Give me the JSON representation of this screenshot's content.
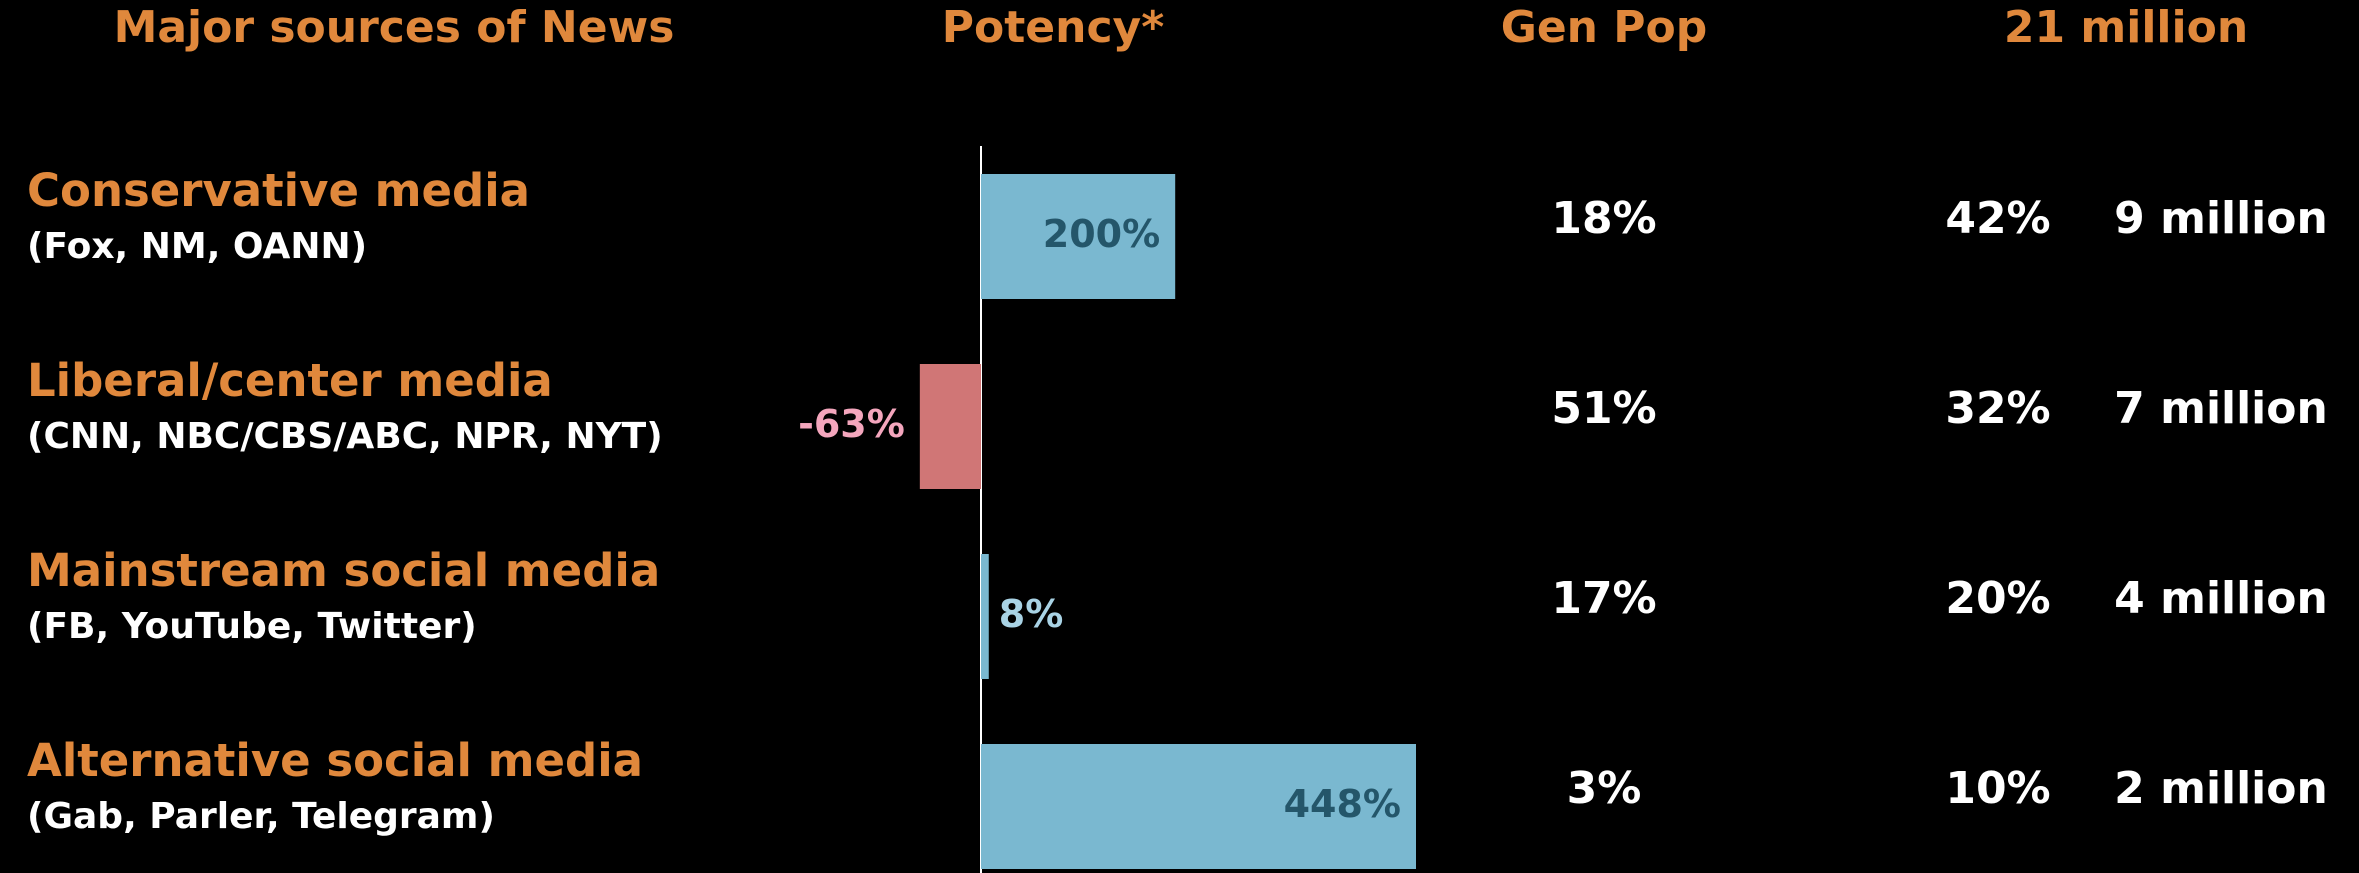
{
  "chart_data": {
    "type": "bar",
    "orientation": "horizontal",
    "title": "Potency*",
    "categories": [
      "Conservative media",
      "Liberal/center media",
      "Mainstream social media",
      "Alternative social media"
    ],
    "category_details": [
      "(Fox, NM, OANN)",
      "(CNN, NBC/CBS/ABC, NPR, NYT)",
      "(FB, YouTube, Twitter)",
      "(Gab, Parler, Telegram)"
    ],
    "values": [
      200,
      -63,
      8,
      448
    ],
    "value_labels": [
      "200%",
      "-63%",
      "8%",
      "448%"
    ],
    "colors": {
      "positive": "#7ab8d0",
      "negative": "#d07676"
    }
  },
  "table": {
    "headers": {
      "sources": "Major sources of News",
      "gen_pop": "Gen Pop",
      "group": "21 million"
    },
    "rows": [
      {
        "gen_pop": "18%",
        "group_share": "42%",
        "group_size": "9 million"
      },
      {
        "gen_pop": "51%",
        "group_share": "32%",
        "group_size": "7 million"
      },
      {
        "gen_pop": "17%",
        "group_share": "20%",
        "group_size": "4 million"
      },
      {
        "gen_pop": "3%",
        "group_share": "10%",
        "group_size": "2 million"
      }
    ]
  }
}
